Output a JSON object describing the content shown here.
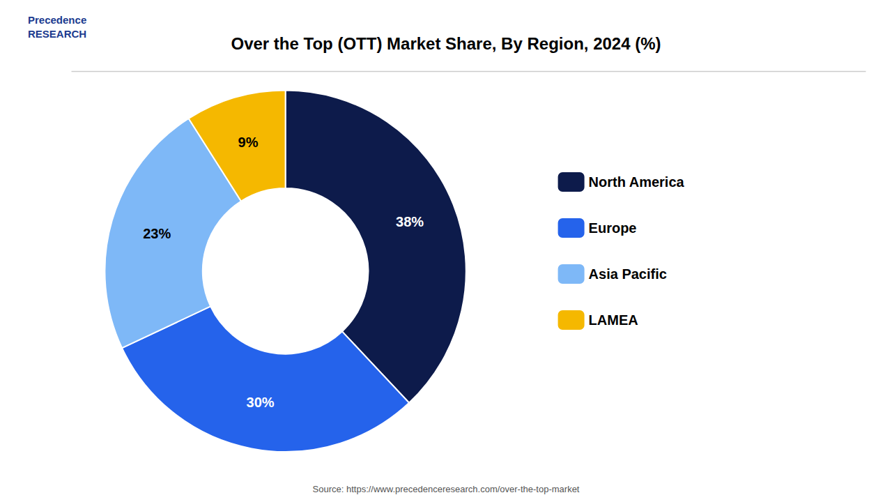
{
  "chart_data": {
    "type": "pie",
    "title": "Over the Top (OTT) Market Share, By Region, 2024 (%)",
    "categories": [
      "North America",
      "Europe",
      "Asia Pacific",
      "LAMEA"
    ],
    "values": [
      38,
      30,
      23,
      9
    ],
    "value_labels": [
      "38%",
      "30%",
      "23%",
      "9%"
    ],
    "colors": [
      "#0d1b4b",
      "#2563eb",
      "#7eb8f7",
      "#f5b800"
    ],
    "data_labels": true,
    "legend": "right",
    "annotations": [
      "Precedence\nRESEARCH",
      "Source: https://www.precedenceresearch.com/over-the-top-market"
    ]
  }
}
